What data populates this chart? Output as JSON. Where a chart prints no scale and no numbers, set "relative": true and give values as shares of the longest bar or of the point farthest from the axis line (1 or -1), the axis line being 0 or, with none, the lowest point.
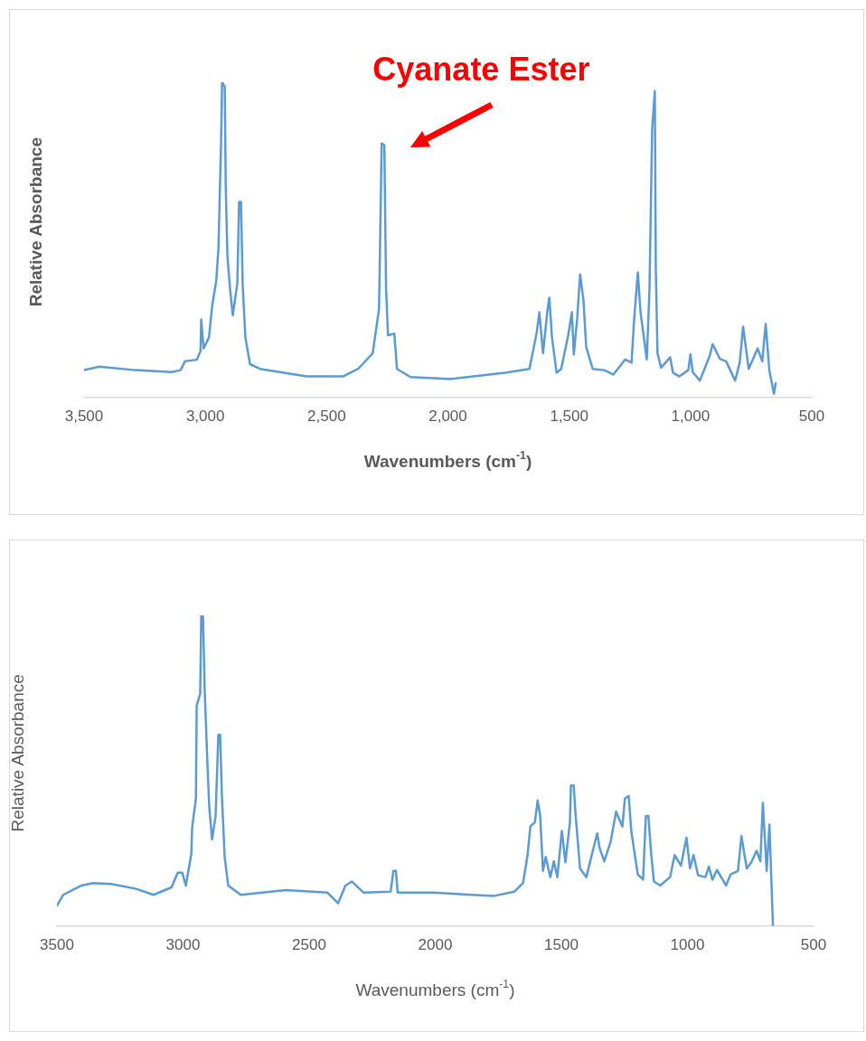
{
  "chart_data": [
    {
      "type": "line",
      "relative": true,
      "xlabel": "Wavenumbers (cm$^{-1}$)",
      "ylabel": "Relative Absorbance",
      "xlim": [
        3500,
        500
      ],
      "xticks": [
        {
          "value": 3500,
          "label": "3,500"
        },
        {
          "value": 3000,
          "label": "3,000"
        },
        {
          "value": 2500,
          "label": "2,500"
        },
        {
          "value": 2000,
          "label": "2,000"
        },
        {
          "value": 1500,
          "label": "1,500"
        },
        {
          "value": 1000,
          "label": "1,000"
        },
        500
      ],
      "grid": false,
      "legend": false,
      "marker": "none",
      "line_style": "solid",
      "annotations": [
        {
          "text": "Cyanate Ester",
          "x": 2265,
          "y": 0.8
        }
      ],
      "series": [
        {
          "color": "#5b9bd5",
          "x": [
            3500,
            3437,
            3288,
            3139,
            3102,
            3084,
            3035,
            3020,
            3017,
            3007,
            2985,
            2972,
            2955,
            2946,
            2935,
            2931,
            2920,
            2916,
            2909,
            2898,
            2887,
            2868,
            2861,
            2853,
            2846,
            2835,
            2816,
            2775,
            2582,
            2433,
            2370,
            2310,
            2284,
            2273,
            2262,
            2255,
            2247,
            2221,
            2210,
            2154,
            1987,
            1764,
            1664,
            1634,
            1623,
            1608,
            1589,
            1582,
            1571,
            1552,
            1533,
            1504,
            1489,
            1481,
            1467,
            1455,
            1441,
            1430,
            1403,
            1355,
            1318,
            1269,
            1243,
            1232,
            1217,
            1206,
            1180,
            1169,
            1158,
            1147,
            1143,
            1136,
            1121,
            1084,
            1072,
            1046,
            1009,
            1000,
            991,
            961,
            920,
            909,
            879,
            853,
            816,
            797,
            783,
            760,
            723,
            704,
            690,
            675,
            656,
            649
          ],
          "values": [
            0.086,
            0.097,
            0.086,
            0.08,
            0.086,
            0.114,
            0.119,
            0.147,
            0.247,
            0.155,
            0.19,
            0.29,
            0.37,
            0.474,
            0.815,
            1.0,
            0.986,
            0.67,
            0.446,
            0.343,
            0.26,
            0.363,
            0.62,
            0.62,
            0.355,
            0.19,
            0.105,
            0.09,
            0.066,
            0.066,
            0.09,
            0.14,
            0.28,
            0.806,
            0.8,
            0.343,
            0.197,
            0.202,
            0.09,
            0.064,
            0.058,
            0.078,
            0.09,
            0.205,
            0.27,
            0.14,
            0.28,
            0.316,
            0.19,
            0.078,
            0.09,
            0.197,
            0.27,
            0.136,
            0.25,
            0.39,
            0.307,
            0.16,
            0.09,
            0.086,
            0.072,
            0.12,
            0.11,
            0.25,
            0.396,
            0.27,
            0.12,
            0.343,
            0.853,
            0.972,
            0.41,
            0.14,
            0.094,
            0.127,
            0.078,
            0.066,
            0.086,
            0.136,
            0.08,
            0.053,
            0.133,
            0.169,
            0.122,
            0.114,
            0.053,
            0.11,
            0.224,
            0.09,
            0.155,
            0.114,
            0.233,
            0.086,
            0.011,
            0.044
          ]
        }
      ]
    },
    {
      "type": "line",
      "relative": true,
      "xlabel": "Wavenumbers (cm$^{-1}$)",
      "ylabel": "Relative Absorbance",
      "xlim": [
        3500,
        500
      ],
      "xticks": [
        3500,
        3000,
        2500,
        2000,
        1500,
        1000,
        500
      ],
      "grid": false,
      "legend": false,
      "marker": "none",
      "line_style": "solid",
      "series": [
        {
          "color": "#5b9bd5",
          "x": [
            3500,
            3475,
            3403,
            3357,
            3285,
            3189,
            3117,
            3046,
            3021,
            3003,
            2989,
            2967,
            2964,
            2949,
            2946,
            2932,
            2928,
            2921,
            2914,
            2903,
            2896,
            2885,
            2871,
            2860,
            2853,
            2846,
            2835,
            2821,
            2771,
            2592,
            2427,
            2385,
            2356,
            2331,
            2284,
            2177,
            2166,
            2156,
            2149,
            2009,
            1770,
            1687,
            1652,
            1634,
            1623,
            1605,
            1594,
            1584,
            1573,
            1562,
            1544,
            1530,
            1516,
            1498,
            1484,
            1466,
            1462,
            1451,
            1444,
            1426,
            1401,
            1373,
            1358,
            1348,
            1330,
            1305,
            1283,
            1258,
            1248,
            1233,
            1223,
            1197,
            1176,
            1165,
            1155,
            1144,
            1133,
            1108,
            1069,
            1051,
            1026,
            1004,
            990,
            976,
            958,
            929,
            915,
            901,
            883,
            847,
            829,
            800,
            786,
            765,
            747,
            726,
            711,
            701,
            686,
            675,
            661
          ],
          "values": [
            0.065,
            0.1,
            0.13,
            0.138,
            0.135,
            0.12,
            0.1,
            0.124,
            0.171,
            0.171,
            0.13,
            0.233,
            0.317,
            0.41,
            0.71,
            0.747,
            1.0,
            1.0,
            0.756,
            0.514,
            0.382,
            0.278,
            0.354,
            0.615,
            0.615,
            0.419,
            0.222,
            0.13,
            0.1,
            0.115,
            0.107,
            0.073,
            0.13,
            0.143,
            0.107,
            0.11,
            0.177,
            0.177,
            0.107,
            0.107,
            0.096,
            0.11,
            0.138,
            0.228,
            0.32,
            0.334,
            0.404,
            0.354,
            0.177,
            0.222,
            0.157,
            0.208,
            0.157,
            0.306,
            0.205,
            0.334,
            0.452,
            0.452,
            0.362,
            0.185,
            0.157,
            0.25,
            0.298,
            0.25,
            0.208,
            0.27,
            0.368,
            0.32,
            0.41,
            0.419,
            0.306,
            0.166,
            0.149,
            0.354,
            0.354,
            0.233,
            0.143,
            0.13,
            0.157,
            0.228,
            0.194,
            0.284,
            0.185,
            0.228,
            0.163,
            0.157,
            0.191,
            0.149,
            0.18,
            0.13,
            0.166,
            0.177,
            0.289,
            0.185,
            0.205,
            0.242,
            0.208,
            0.396,
            0.177,
            0.326,
            0.0
          ]
        }
      ]
    }
  ]
}
